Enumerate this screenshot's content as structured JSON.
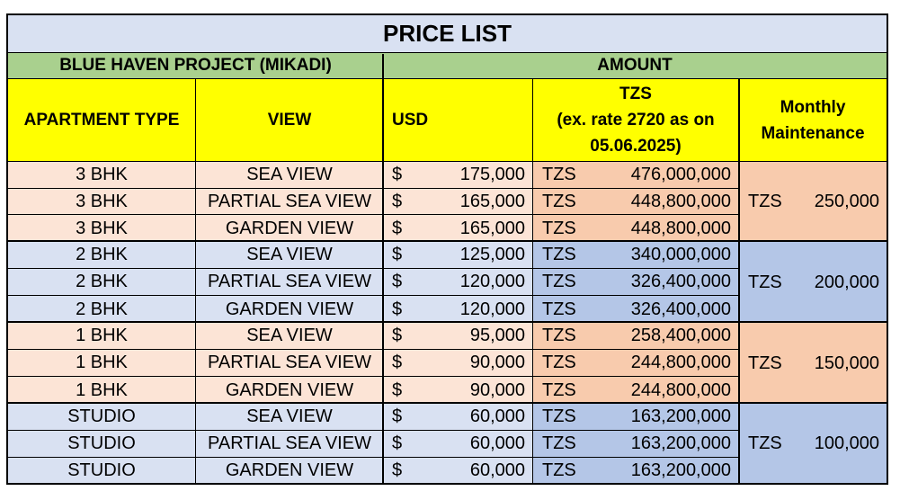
{
  "title": "PRICE LIST",
  "project": "BLUE HAVEN PROJECT (MIKADI)",
  "amount_header": "AMOUNT",
  "headers": {
    "apartment_type": "APARTMENT TYPE",
    "view": "VIEW",
    "usd": "USD",
    "tzs_line1": "TZS",
    "tzs_line2": "(ex. rate 2720 as on",
    "tzs_line3": "05.06.2025)",
    "maint_line1": "Monthly",
    "maint_line2": "Maintenance"
  },
  "currency": {
    "usd_symbol": "$",
    "tzs_symbol": "TZS"
  },
  "rows": [
    {
      "type": "3 BHK",
      "view": "SEA VIEW",
      "usd": "175,000",
      "tzs": "476,000,000"
    },
    {
      "type": "3 BHK",
      "view": "PARTIAL SEA VIEW",
      "usd": "165,000",
      "tzs": "448,800,000"
    },
    {
      "type": "3 BHK",
      "view": "GARDEN VIEW",
      "usd": "165,000",
      "tzs": "448,800,000"
    },
    {
      "type": "2 BHK",
      "view": "SEA VIEW",
      "usd": "125,000",
      "tzs": "340,000,000"
    },
    {
      "type": "2 BHK",
      "view": "PARTIAL SEA VIEW",
      "usd": "120,000",
      "tzs": "326,400,000"
    },
    {
      "type": "2 BHK",
      "view": "GARDEN VIEW",
      "usd": "120,000",
      "tzs": "326,400,000"
    },
    {
      "type": "1 BHK",
      "view": "SEA VIEW",
      "usd": "95,000",
      "tzs": "258,400,000"
    },
    {
      "type": "1 BHK",
      "view": "PARTIAL SEA VIEW",
      "usd": "90,000",
      "tzs": "244,800,000"
    },
    {
      "type": "1 BHK",
      "view": "GARDEN VIEW",
      "usd": "90,000",
      "tzs": "244,800,000"
    },
    {
      "type": "STUDIO",
      "view": "SEA VIEW",
      "usd": "60,000",
      "tzs": "163,200,000"
    },
    {
      "type": "STUDIO",
      "view": "PARTIAL SEA VIEW",
      "usd": "60,000",
      "tzs": "163,200,000"
    },
    {
      "type": "STUDIO",
      "view": "GARDEN VIEW",
      "usd": "60,000",
      "tzs": "163,200,000"
    }
  ],
  "maintenance": [
    "250,000",
    "200,000",
    "150,000",
    "100,000"
  ],
  "colors": {
    "title_bg": "#d9e1f2",
    "section_bg": "#a9d08e",
    "header_bg": "#ffff00",
    "group_light_a": "#fce4d6",
    "group_dark_a": "#f8cbad",
    "group_light_b": "#d9e1f2",
    "group_dark_b": "#b4c6e7"
  }
}
